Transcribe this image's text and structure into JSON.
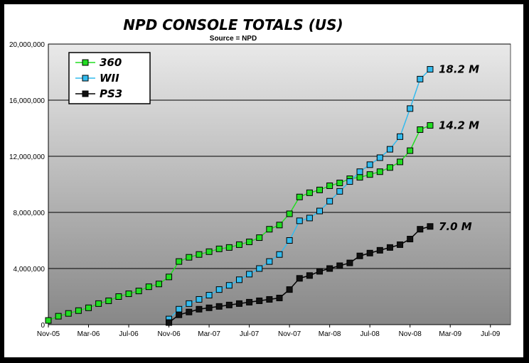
{
  "chart_data": {
    "type": "line",
    "title": "NPD CONSOLE TOTALS (US)",
    "subtitle": "Source = NPD",
    "xlabel": "",
    "ylabel": "",
    "x_tick_labels": [
      "Nov-05",
      "Mar-06",
      "Jul-06",
      "Nov-06",
      "Mar-07",
      "Jul-07",
      "Nov-07",
      "Mar-08",
      "Jul-08",
      "Nov-08",
      "Mar-09",
      "Jul-09"
    ],
    "y_tick_labels": [
      "0",
      "4,000,000",
      "8,000,000",
      "12,000,000",
      "16,000,000",
      "20,000,000"
    ],
    "ylim": [
      0,
      20000000
    ],
    "x_range_months": [
      "Nov-05",
      "Sep-09"
    ],
    "grid": "horizontal",
    "legend_position": "top-left",
    "background": "gradient gray",
    "series": [
      {
        "name": "360",
        "color": "#22dd22",
        "start": "Nov-05",
        "values": [
          300000,
          600000,
          800000,
          1000000,
          1200000,
          1500000,
          1700000,
          2000000,
          2200000,
          2400000,
          2700000,
          2900000,
          3400000,
          4500000,
          4800000,
          5000000,
          5200000,
          5400000,
          5500000,
          5700000,
          5900000,
          6200000,
          6800000,
          7100000,
          7900000,
          9100000,
          9400000,
          9600000,
          9900000,
          10100000,
          10400000,
          10500000,
          10700000,
          10900000,
          11200000,
          11600000,
          12400000,
          13900000,
          14200000
        ],
        "end_label": "14.2 M"
      },
      {
        "name": "WII",
        "color": "#33bbee",
        "start": "Nov-06",
        "values": [
          400000,
          1100000,
          1500000,
          1800000,
          2100000,
          2500000,
          2800000,
          3200000,
          3600000,
          4000000,
          4500000,
          5000000,
          6000000,
          7400000,
          7600000,
          8100000,
          8800000,
          9500000,
          10200000,
          10900000,
          11400000,
          11900000,
          12500000,
          13400000,
          15400000,
          17500000,
          18200000
        ],
        "end_label": "18.2 M"
      },
      {
        "name": "PS3",
        "color": "#111111",
        "start": "Nov-06",
        "values": [
          150000,
          700000,
          900000,
          1100000,
          1200000,
          1300000,
          1400000,
          1500000,
          1600000,
          1700000,
          1800000,
          1900000,
          2500000,
          3300000,
          3500000,
          3800000,
          4000000,
          4200000,
          4400000,
          4900000,
          5100000,
          5300000,
          5500000,
          5700000,
          6100000,
          6800000,
          7000000
        ],
        "end_label": "7.0 M"
      }
    ]
  }
}
